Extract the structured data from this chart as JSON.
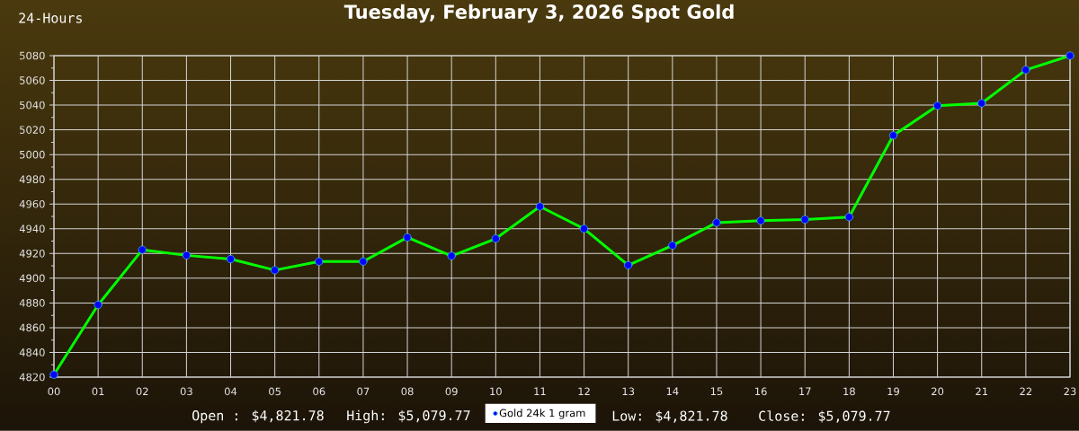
{
  "chart_data": {
    "type": "line",
    "title": "Tuesday, February 3, 2026 Spot Gold",
    "subtitle": "24-Hours",
    "annotations": [
      "Open : $4,821.78",
      "High: $5,079.77",
      "Low: $4,821.78",
      "Close: $5,079.77"
    ],
    "categories": [
      "00",
      "01",
      "02",
      "03",
      "04",
      "05",
      "06",
      "07",
      "08",
      "09",
      "10",
      "11",
      "12",
      "13",
      "14",
      "15",
      "16",
      "17",
      "18",
      "19",
      "20",
      "21",
      "22",
      "23"
    ],
    "series": [
      {
        "name": "Gold 24k 1 gram",
        "color": "#00ff00",
        "values": [
          4822,
          4878.5,
          4923,
          4918.5,
          4915.5,
          4906.5,
          4913.5,
          4913.5,
          4933,
          4918,
          4932,
          4958,
          4940,
          4910.5,
          4926.5,
          4945,
          4946.5,
          4947.5,
          4949.5,
          5015.5,
          5039.5,
          5041.5,
          5068.5,
          5080
        ]
      }
    ],
    "ylim": [
      4820,
      5080
    ],
    "yticks": [
      4820,
      {
        "value": 4830,
        "label": null
      },
      4840,
      {
        "value": 4850,
        "label": null
      },
      4860,
      {
        "value": 4870,
        "label": null
      },
      4880,
      {
        "value": 4890,
        "label": null
      },
      4900,
      {
        "value": 4910,
        "label": null
      },
      4920,
      {
        "value": 4930,
        "label": null
      },
      4940,
      {
        "value": 4950,
        "label": null
      },
      4960,
      {
        "value": 4970,
        "label": null
      },
      4980,
      {
        "value": 4990,
        "label": null
      },
      5000,
      {
        "value": 5010,
        "label": null
      },
      5020,
      {
        "value": 5030,
        "label": null
      },
      5040,
      {
        "value": 5050,
        "label": null
      },
      5060,
      {
        "value": 5070,
        "label": null
      },
      5080
    ],
    "grid": true,
    "legend": "bottom",
    "marker": "circle",
    "line_style": "solid"
  }
}
